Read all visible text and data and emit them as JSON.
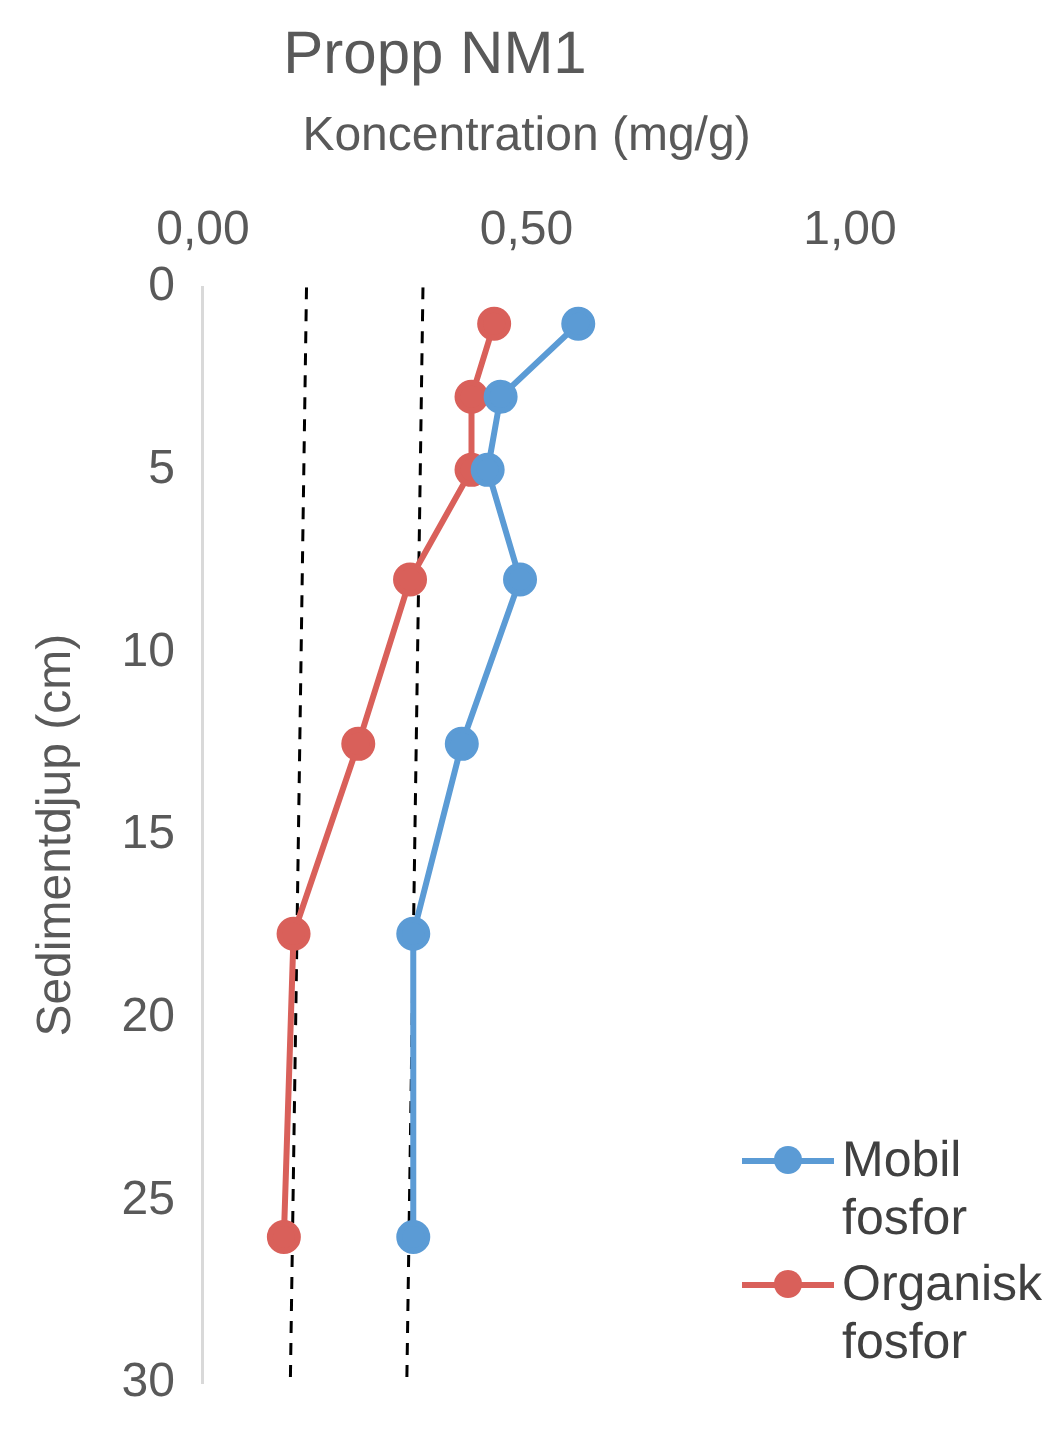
{
  "chart_data": {
    "type": "line",
    "title": "Propp NM1",
    "xlabel": "Koncentration (mg/g)",
    "ylabel": "Sedimentdjup (cm)",
    "xlim": [
      0,
      1
    ],
    "xticks": [
      {
        "value": 0,
        "label": "0,00"
      },
      {
        "value": 0.5,
        "label": "0,50"
      },
      {
        "value": 1,
        "label": "1,00"
      }
    ],
    "ylim": [
      30,
      0
    ],
    "yticks": [
      0,
      5,
      10,
      15,
      20,
      25,
      30
    ],
    "grid": false,
    "legend": "bottom right",
    "marker": "circle",
    "series": [
      {
        "name": "Mobil fosfor",
        "color": "#5b9bd5",
        "x": [
          0.58,
          0.46,
          0.44,
          0.49,
          0.4,
          0.325,
          0.325
        ],
        "values": [
          1,
          3,
          5,
          8,
          12.5,
          17.7,
          26
        ]
      },
      {
        "name": "Organisk fosfor",
        "color": "#d9605a",
        "x": [
          0.45,
          0.415,
          0.415,
          0.32,
          0.24,
          0.14,
          0.125
        ],
        "values": [
          1,
          3,
          5,
          8,
          12.5,
          17.7,
          26
        ]
      },
      {
        "color": "#000000",
        "marker": "none",
        "line_style": "dashed",
        "x": [
          0.16,
          0.135
        ],
        "values": [
          0,
          30
        ]
      },
      {
        "color": "#000000",
        "marker": "none",
        "line_style": "dashed",
        "x": [
          0.34,
          0.315
        ],
        "values": [
          0,
          30
        ]
      }
    ]
  }
}
